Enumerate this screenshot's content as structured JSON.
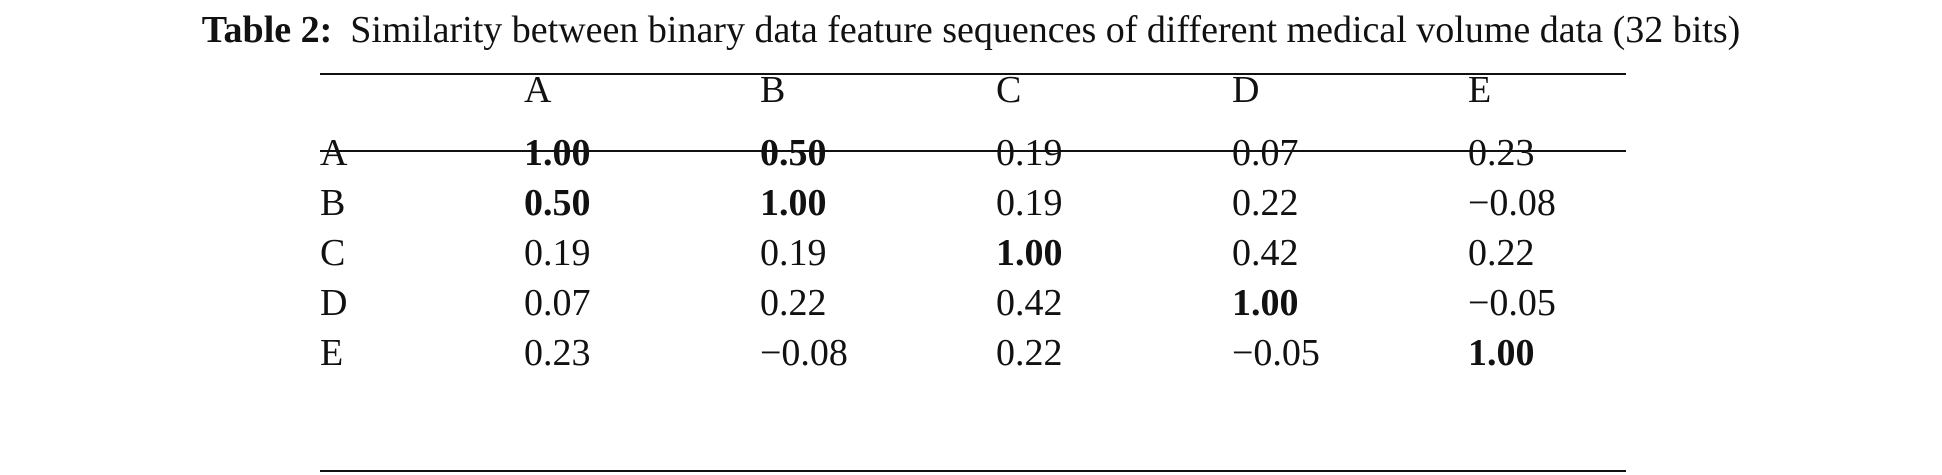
{
  "caption": {
    "label": "Table 2:",
    "text": "Similarity between binary data feature sequences of different medical volume data (32 bits)"
  },
  "table": {
    "columns": [
      "",
      "A",
      "B",
      "C",
      "D",
      "E"
    ],
    "rows": [
      {
        "label": "A",
        "cells": [
          {
            "text": "1.00",
            "bold": true
          },
          {
            "text": "0.50",
            "bold": true
          },
          {
            "text": "0.19",
            "bold": false
          },
          {
            "text": "0.07",
            "bold": false
          },
          {
            "text": "0.23",
            "bold": false
          }
        ]
      },
      {
        "label": "B",
        "cells": [
          {
            "text": "0.50",
            "bold": true
          },
          {
            "text": "1.00",
            "bold": true
          },
          {
            "text": "0.19",
            "bold": false
          },
          {
            "text": "0.22",
            "bold": false
          },
          {
            "text": "−0.08",
            "bold": false
          }
        ]
      },
      {
        "label": "C",
        "cells": [
          {
            "text": "0.19",
            "bold": false
          },
          {
            "text": "0.19",
            "bold": false
          },
          {
            "text": "1.00",
            "bold": true
          },
          {
            "text": "0.42",
            "bold": false
          },
          {
            "text": "0.22",
            "bold": false
          }
        ]
      },
      {
        "label": "D",
        "cells": [
          {
            "text": "0.07",
            "bold": false
          },
          {
            "text": "0.22",
            "bold": false
          },
          {
            "text": "0.42",
            "bold": false
          },
          {
            "text": "1.00",
            "bold": true
          },
          {
            "text": "−0.05",
            "bold": false
          }
        ]
      },
      {
        "label": "E",
        "cells": [
          {
            "text": "0.23",
            "bold": false
          },
          {
            "text": "−0.08",
            "bold": false
          },
          {
            "text": "0.22",
            "bold": false
          },
          {
            "text": "−0.05",
            "bold": false
          },
          {
            "text": "1.00",
            "bold": true
          }
        ]
      }
    ]
  }
}
